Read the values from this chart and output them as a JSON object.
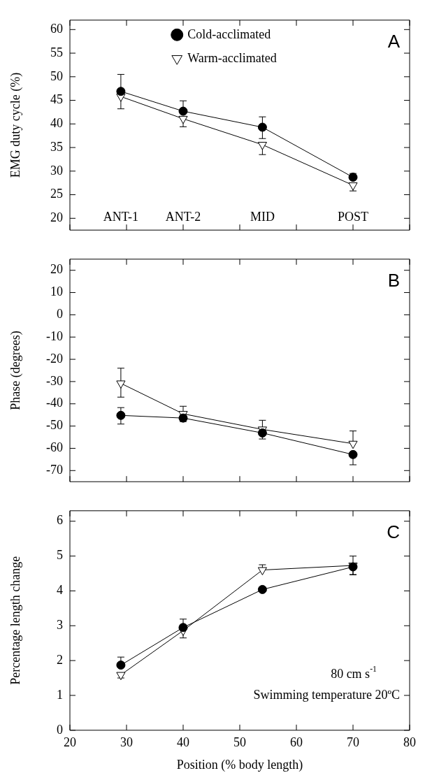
{
  "chart_data": [
    {
      "type": "line",
      "ylabel": "EMG duty cycle (%)",
      "x": [
        29,
        40,
        54,
        70
      ],
      "xlim": [
        20,
        80
      ],
      "xticks": [
        20,
        30,
        40,
        50,
        60,
        70,
        80
      ],
      "ylim": [
        17.5,
        62
      ],
      "yticks": [
        20,
        25,
        30,
        35,
        40,
        45,
        50,
        55,
        60
      ],
      "tick_labels": "y",
      "legend": "top",
      "grid": false,
      "line_style": "solid",
      "annotations": [
        "A",
        "ANT-1",
        "ANT-2",
        "MID",
        "POST"
      ],
      "series": [
        {
          "name": "Cold-acclimated",
          "color": "#000000",
          "marker": "circle",
          "values": [
            46.9,
            42.7,
            39.3,
            28.7
          ],
          "errors": [
            [
              46.9,
              50.5
            ],
            [
              42.7,
              44.9
            ],
            [
              36.9,
              41.5
            ],
            [
              28.7,
              29.5
            ]
          ]
        },
        {
          "name": "Warm-acclimated",
          "color": "#000000",
          "marker": "triangle",
          "values": [
            45.8,
            41.1,
            35.6,
            27.0
          ],
          "errors": [
            [
              43.2,
              45.8
            ],
            [
              39.4,
              41.1
            ],
            [
              33.5,
              36.0
            ],
            [
              25.8,
              27.0
            ]
          ]
        }
      ]
    },
    {
      "type": "line",
      "ylabel": "Phase (degrees)",
      "x": [
        29,
        40,
        54,
        70
      ],
      "xlim": [
        20,
        80
      ],
      "xticks": [
        20,
        30,
        40,
        50,
        60,
        70,
        80
      ],
      "ylim": [
        -75,
        25
      ],
      "yticks": [
        20,
        10,
        0,
        -10,
        -20,
        -30,
        -40,
        -50,
        -60,
        -70
      ],
      "tick_labels": "y",
      "grid": false,
      "line_style": "solid",
      "annotations": [
        "B"
      ],
      "series": [
        {
          "color": "#000000",
          "marker": "circle",
          "values": [
            -45.2,
            -46.4,
            -53.1,
            -62.8
          ],
          "errors": [
            [
              -49.1,
              -41.7
            ],
            [
              -48,
              -45
            ],
            [
              -55.8,
              -53.1
            ],
            [
              -67.4,
              -62.8
            ]
          ]
        },
        {
          "color": "#000000",
          "marker": "triangle",
          "values": [
            -30.8,
            -44.5,
            -51.5,
            -57.9
          ],
          "errors": [
            [
              -37.0,
              -24.0
            ],
            [
              -44.5,
              -41.1
            ],
            [
              -51.5,
              -47.4
            ],
            [
              -57.9,
              -52.2
            ]
          ]
        }
      ]
    },
    {
      "type": "line",
      "xlabel": "Position (% body length)",
      "ylabel": "Percentage length change",
      "x": [
        29,
        40,
        54,
        70
      ],
      "xlim": [
        20,
        80
      ],
      "xticks": [
        20,
        30,
        40,
        50,
        60,
        70,
        80
      ],
      "ylim": [
        0,
        6.3
      ],
      "yticks": [
        0,
        1,
        2,
        3,
        4,
        5,
        6
      ],
      "grid": false,
      "line_style": "solid",
      "annotations": [
        "C",
        "80 cm s$^{-1}$",
        "Swimming temperature 20ºC"
      ],
      "series": [
        {
          "color": "#000000",
          "marker": "circle",
          "values": [
            1.87,
            2.95,
            4.04,
            4.69
          ],
          "errors": [
            [
              1.87,
              2.1
            ],
            [
              2.95,
              3.19
            ],
            null,
            [
              4.47,
              4.69
            ]
          ]
        },
        {
          "color": "#000000",
          "marker": "triangle",
          "values": [
            1.59,
            2.86,
            4.6,
            4.73
          ],
          "errors": [
            [
              1.5,
              1.59
            ],
            [
              2.65,
              2.86
            ],
            [
              4.6,
              4.75
            ],
            0.27
          ]
        }
      ]
    }
  ]
}
